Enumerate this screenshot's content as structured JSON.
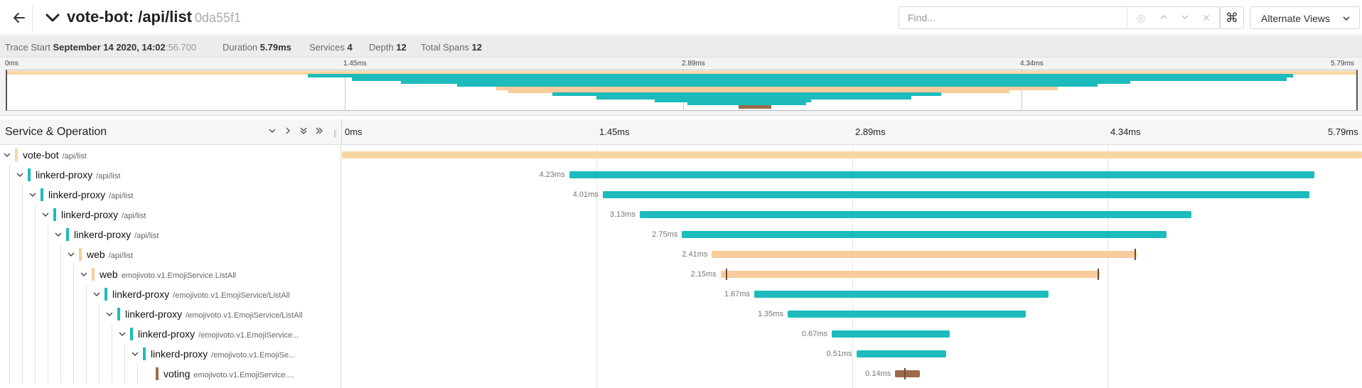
{
  "header": {
    "title": "vote-bot: /api/list",
    "trace_id": "0da55f1",
    "find_placeholder": "Find...",
    "kbd_icon": "⌘",
    "alt_views_label": "Alternate Views"
  },
  "meta": {
    "trace_start_label": "Trace Start",
    "trace_start_date": "September 14 2020, 14:02",
    "trace_start_seconds": ":56.700",
    "duration_label": "Duration",
    "duration_value": "5.79ms",
    "services_label": "Services",
    "services_value": "4",
    "depth_label": "Depth",
    "depth_value": "12",
    "total_spans_label": "Total Spans",
    "total_spans_value": "12"
  },
  "ticks": [
    "0ms",
    "1.45ms",
    "2.89ms",
    "4.34ms",
    "5.79ms"
  ],
  "timeline": {
    "column_title": "Service & Operation"
  },
  "colors": {
    "vote-bot": "#f8d6a3",
    "linkerd-proxy": "#1dbbbb",
    "web": "#f8cc9b",
    "voting": "#9c6a4a"
  },
  "total_duration_ms": 5.79,
  "spans": [
    {
      "service": "vote-bot",
      "operation": "/api/list",
      "depth": 0,
      "start_ms": 0.0,
      "duration_ms": 5.79,
      "duration_label": ""
    },
    {
      "service": "linkerd-proxy",
      "operation": "/api/list",
      "depth": 1,
      "start_ms": 1.29,
      "duration_ms": 4.23,
      "duration_label": "4.23ms"
    },
    {
      "service": "linkerd-proxy",
      "operation": "/api/list",
      "depth": 2,
      "start_ms": 1.48,
      "duration_ms": 4.01,
      "duration_label": "4.01ms"
    },
    {
      "service": "linkerd-proxy",
      "operation": "/api/list",
      "depth": 3,
      "start_ms": 1.69,
      "duration_ms": 3.13,
      "duration_label": "3.13ms"
    },
    {
      "service": "linkerd-proxy",
      "operation": "/api/list",
      "depth": 4,
      "start_ms": 1.93,
      "duration_ms": 2.75,
      "duration_label": "2.75ms"
    },
    {
      "service": "web",
      "operation": "/api/list",
      "depth": 5,
      "start_ms": 2.1,
      "duration_ms": 2.41,
      "duration_label": "2.41ms",
      "marker_ms": 4.5
    },
    {
      "service": "web",
      "operation": "emojivoto.v1.EmojiService.ListAll",
      "depth": 6,
      "start_ms": 2.15,
      "duration_ms": 2.15,
      "duration_label": "2.15ms",
      "marker_ms": 4.29,
      "marker2_ms": 2.18
    },
    {
      "service": "linkerd-proxy",
      "operation": "/emojivoto.v1.EmojiService/ListAll",
      "depth": 7,
      "start_ms": 2.34,
      "duration_ms": 1.67,
      "duration_label": "1.67ms"
    },
    {
      "service": "linkerd-proxy",
      "operation": "/emojivoto.v1.EmojiService/ListAll",
      "depth": 8,
      "start_ms": 2.53,
      "duration_ms": 1.35,
      "duration_label": "1.35ms"
    },
    {
      "service": "linkerd-proxy",
      "operation": "/emojivoto.v1.EmojiService...",
      "depth": 9,
      "start_ms": 2.78,
      "duration_ms": 0.67,
      "duration_label": "0.67ms"
    },
    {
      "service": "linkerd-proxy",
      "operation": "/emojivoto.v1.EmojiSe...",
      "depth": 10,
      "start_ms": 2.92,
      "duration_ms": 0.51,
      "duration_label": "0.51ms"
    },
    {
      "service": "voting",
      "operation": "emojivoto.v1.EmojiService....",
      "depth": 11,
      "start_ms": 3.14,
      "duration_ms": 0.14,
      "duration_label": "0.14ms",
      "marker_ms": 3.19
    }
  ]
}
